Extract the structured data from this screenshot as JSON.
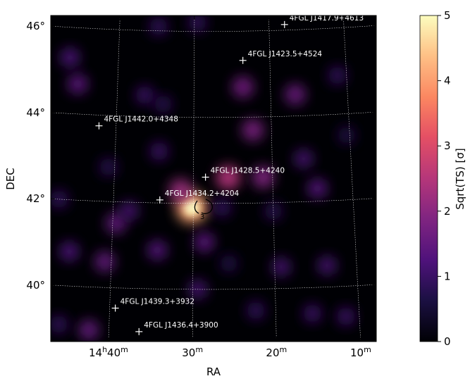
{
  "chart_data": {
    "type": "heatmap",
    "title": "",
    "xlabel": "RA",
    "ylabel": "DEC",
    "x_ticks": [
      "14h40m",
      "30m",
      "20m",
      "10m"
    ],
    "y_ticks": [
      "46°",
      "44°",
      "42°",
      "40°"
    ],
    "x_tick_values_deg": [
      220.0,
      217.5,
      215.0,
      212.5
    ],
    "y_tick_values_deg": [
      46,
      44,
      42,
      40
    ],
    "ra_range_deg": [
      221.9,
      212.2
    ],
    "dec_range_deg": [
      38.85,
      46.3
    ],
    "grid": true,
    "colormap": "magma",
    "colorbar": {
      "label": "Sqrt(TS) [σ]",
      "ticks": [
        "0",
        "1",
        "2",
        "3",
        "4",
        "5"
      ],
      "tick_values": [
        0,
        1,
        2,
        3,
        4,
        5
      ],
      "vmin": 0,
      "vmax": 5
    },
    "contour": {
      "label": "3",
      "level": 3
    },
    "sources": [
      {
        "name": "4FGL J1417.9+4613",
        "ra": 214.48,
        "dec": 46.13
      },
      {
        "name": "4FGL J1423.5+4524",
        "ra": 215.89,
        "dec": 45.32
      },
      {
        "name": "4FGL J1442.0+4348",
        "ra": 220.55,
        "dec": 43.75
      },
      {
        "name": "4FGL J1428.5+4240",
        "ra": 217.12,
        "dec": 42.61
      },
      {
        "name": "4FGL J1434.2+4204",
        "ra": 218.55,
        "dec": 42.07
      },
      {
        "name": "4FGL J1439.3+3932",
        "ra": 219.83,
        "dec": 39.53
      },
      {
        "name": "4FGL J1436.4+3900",
        "ra": 219.1,
        "dec": 39.0
      }
    ],
    "hotspots": [
      {
        "ra": 217.55,
        "dec": 41.9,
        "value": 4.3
      },
      {
        "ra": 217.9,
        "dec": 42.3,
        "value": 2.3
      },
      {
        "ra": 216.4,
        "dec": 42.6,
        "value": 2.6
      },
      {
        "ra": 215.3,
        "dec": 42.6,
        "value": 2.0
      },
      {
        "ra": 215.9,
        "dec": 44.7,
        "value": 1.8
      },
      {
        "ra": 215.6,
        "dec": 43.7,
        "value": 1.9
      },
      {
        "ra": 214.2,
        "dec": 44.5,
        "value": 1.7
      },
      {
        "ra": 221.3,
        "dec": 44.7,
        "value": 1.5
      },
      {
        "ra": 221.6,
        "dec": 45.3,
        "value": 1.3
      },
      {
        "ra": 219.1,
        "dec": 44.5,
        "value": 1.1
      },
      {
        "ra": 218.5,
        "dec": 44.3,
        "value": 0.9
      },
      {
        "ra": 218.6,
        "dec": 43.2,
        "value": 1.1
      },
      {
        "ra": 220.2,
        "dec": 42.8,
        "value": 0.9
      },
      {
        "ra": 221.7,
        "dec": 42.0,
        "value": 1.0
      },
      {
        "ra": 219.9,
        "dec": 41.5,
        "value": 1.6
      },
      {
        "ra": 219.5,
        "dec": 41.8,
        "value": 1.2
      },
      {
        "ra": 218.6,
        "dec": 40.9,
        "value": 1.4
      },
      {
        "ra": 217.15,
        "dec": 41.1,
        "value": 1.5
      },
      {
        "ra": 220.2,
        "dec": 40.6,
        "value": 1.6
      },
      {
        "ra": 221.3,
        "dec": 40.8,
        "value": 1.3
      },
      {
        "ra": 216.6,
        "dec": 41.9,
        "value": 1.0
      },
      {
        "ra": 215.0,
        "dec": 41.8,
        "value": 0.9
      },
      {
        "ra": 214.0,
        "dec": 43.0,
        "value": 1.2
      },
      {
        "ra": 213.6,
        "dec": 42.3,
        "value": 1.4
      },
      {
        "ra": 214.8,
        "dec": 40.5,
        "value": 1.2
      },
      {
        "ra": 213.4,
        "dec": 40.5,
        "value": 1.2
      },
      {
        "ra": 213.9,
        "dec": 39.4,
        "value": 1.1
      },
      {
        "ra": 212.9,
        "dec": 39.3,
        "value": 1.1
      },
      {
        "ra": 217.35,
        "dec": 40.0,
        "value": 1.2
      },
      {
        "ra": 220.6,
        "dec": 39.0,
        "value": 1.6
      },
      {
        "ra": 221.5,
        "dec": 39.1,
        "value": 1.0
      },
      {
        "ra": 217.4,
        "dec": 46.2,
        "value": 1.0
      },
      {
        "ra": 212.8,
        "dec": 44.9,
        "value": 1.0
      },
      {
        "ra": 218.7,
        "dec": 46.1,
        "value": 1.0
      },
      {
        "ra": 215.6,
        "dec": 39.5,
        "value": 1.0
      },
      {
        "ra": 216.4,
        "dec": 40.6,
        "value": 0.8
      },
      {
        "ra": 212.6,
        "dec": 43.5,
        "value": 0.8
      }
    ]
  }
}
